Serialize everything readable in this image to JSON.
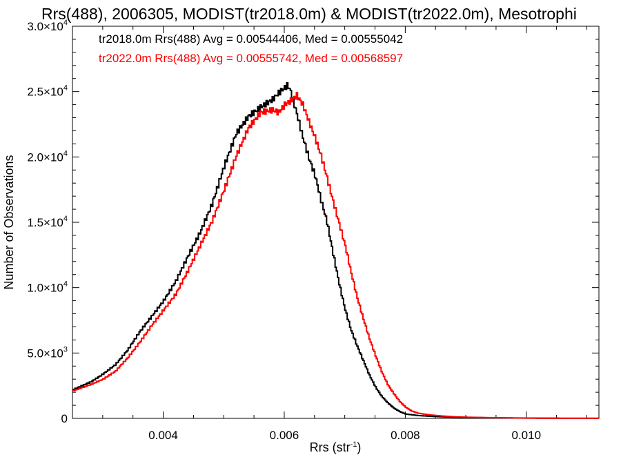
{
  "chart_data": {
    "type": "line",
    "title": "Rrs(488), 2006305, MODIST(tr2018.0m) & MODIST(tr2022.0m), Mesotrophi",
    "xlabel": "Rrs (str",
    "xlabel_sup": "-1",
    "xlabel_end": ")",
    "ylabel": "Number of Observations",
    "xlim": [
      0.0025,
      0.0112
    ],
    "ylim": [
      0,
      30000
    ],
    "x_ticks": [
      {
        "value": 0.004,
        "label": "0.004"
      },
      {
        "value": 0.006,
        "label": "0.006"
      },
      {
        "value": 0.008,
        "label": "0.008"
      },
      {
        "value": 0.01,
        "label": "0.010"
      }
    ],
    "y_ticks": [
      {
        "value": 0,
        "mant": "0",
        "exp": ""
      },
      {
        "value": 5000,
        "mant": "5.0×10",
        "exp": "3"
      },
      {
        "value": 10000,
        "mant": "1.0×10",
        "exp": "4"
      },
      {
        "value": 15000,
        "mant": "1.5×10",
        "exp": "4"
      },
      {
        "value": 20000,
        "mant": "2.0×10",
        "exp": "4"
      },
      {
        "value": 25000,
        "mant": "2.5×10",
        "exp": "4"
      },
      {
        "value": 30000,
        "mant": "3.0×10",
        "exp": "4"
      }
    ],
    "legend_placement": "top-left",
    "series": [
      {
        "name": "tr2018.0m Rrs(488) Avg = 0.00544406, Med = 0.00555042",
        "color": "#000000",
        "points": [
          [
            0.0025,
            2200
          ],
          [
            0.0028,
            2800
          ],
          [
            0.003,
            3400
          ],
          [
            0.0032,
            4100
          ],
          [
            0.0034,
            5200
          ],
          [
            0.0036,
            6600
          ],
          [
            0.0038,
            7800
          ],
          [
            0.004,
            9000
          ],
          [
            0.0042,
            10500
          ],
          [
            0.0044,
            12400
          ],
          [
            0.0046,
            14200
          ],
          [
            0.0048,
            16400
          ],
          [
            0.005,
            19300
          ],
          [
            0.0052,
            21800
          ],
          [
            0.0054,
            23100
          ],
          [
            0.0056,
            23800
          ],
          [
            0.0058,
            24400
          ],
          [
            0.0059,
            24900
          ],
          [
            0.006,
            25300
          ],
          [
            0.00605,
            25500
          ],
          [
            0.0061,
            25000
          ],
          [
            0.0062,
            23300
          ],
          [
            0.0063,
            21500
          ],
          [
            0.0064,
            19900
          ],
          [
            0.0065,
            18600
          ],
          [
            0.0066,
            16700
          ],
          [
            0.0067,
            15000
          ],
          [
            0.0068,
            12600
          ],
          [
            0.0069,
            10300
          ],
          [
            0.007,
            8300
          ],
          [
            0.0071,
            6700
          ],
          [
            0.0072,
            5500
          ],
          [
            0.0073,
            4400
          ],
          [
            0.0074,
            3300
          ],
          [
            0.0075,
            2400
          ],
          [
            0.0076,
            1700
          ],
          [
            0.0077,
            1200
          ],
          [
            0.0078,
            800
          ],
          [
            0.0079,
            520
          ],
          [
            0.008,
            330
          ],
          [
            0.0082,
            220
          ],
          [
            0.0084,
            160
          ],
          [
            0.0086,
            120
          ],
          [
            0.0088,
            90
          ],
          [
            0.009,
            70
          ],
          [
            0.0095,
            40
          ],
          [
            0.01,
            20
          ],
          [
            0.0105,
            10
          ],
          [
            0.0112,
            5
          ]
        ]
      },
      {
        "name": "tr2022.0m Rrs(488) Avg = 0.00555742, Med = 0.00568597",
        "color": "#ff0000",
        "points": [
          [
            0.0025,
            2100
          ],
          [
            0.0028,
            2600
          ],
          [
            0.003,
            3000
          ],
          [
            0.0032,
            3600
          ],
          [
            0.0034,
            4600
          ],
          [
            0.0036,
            5800
          ],
          [
            0.0038,
            7100
          ],
          [
            0.004,
            8300
          ],
          [
            0.0042,
            9500
          ],
          [
            0.0044,
            11300
          ],
          [
            0.0046,
            13200
          ],
          [
            0.0048,
            15100
          ],
          [
            0.005,
            17500
          ],
          [
            0.0052,
            20100
          ],
          [
            0.0054,
            22200
          ],
          [
            0.0056,
            23400
          ],
          [
            0.0058,
            23600
          ],
          [
            0.0059,
            23400
          ],
          [
            0.006,
            24000
          ],
          [
            0.0061,
            24300
          ],
          [
            0.0062,
            24700
          ],
          [
            0.0063,
            24000
          ],
          [
            0.0064,
            22700
          ],
          [
            0.0065,
            21500
          ],
          [
            0.0066,
            20100
          ],
          [
            0.0067,
            18400
          ],
          [
            0.0068,
            16600
          ],
          [
            0.0069,
            14900
          ],
          [
            0.007,
            13200
          ],
          [
            0.0071,
            11100
          ],
          [
            0.0072,
            9200
          ],
          [
            0.0073,
            7600
          ],
          [
            0.0074,
            6100
          ],
          [
            0.0075,
            4800
          ],
          [
            0.0076,
            3600
          ],
          [
            0.0077,
            2600
          ],
          [
            0.0078,
            1900
          ],
          [
            0.0079,
            1300
          ],
          [
            0.008,
            850
          ],
          [
            0.0081,
            560
          ],
          [
            0.0082,
            400
          ],
          [
            0.0084,
            260
          ],
          [
            0.0086,
            180
          ],
          [
            0.0088,
            120
          ],
          [
            0.009,
            90
          ],
          [
            0.0095,
            50
          ],
          [
            0.01,
            25
          ],
          [
            0.0105,
            10
          ],
          [
            0.0112,
            5
          ]
        ]
      }
    ]
  }
}
